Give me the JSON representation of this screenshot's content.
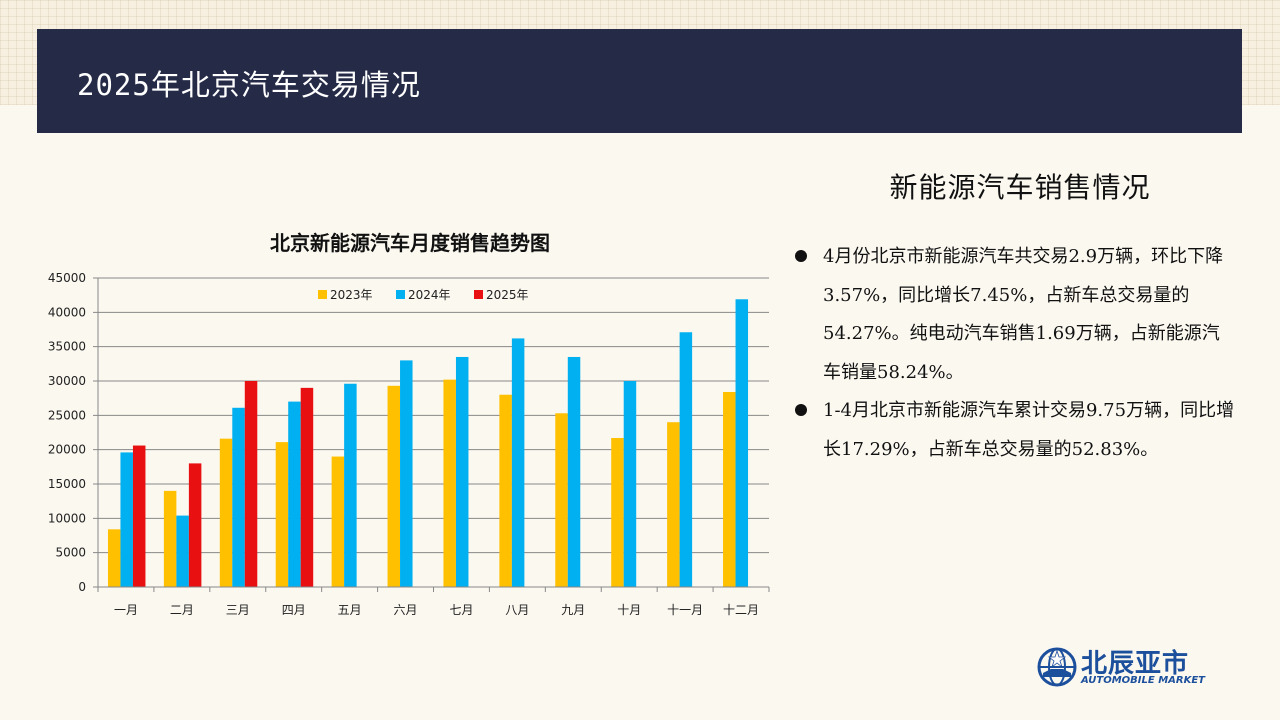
{
  "header": {
    "title": "2025年北京汽车交易情况"
  },
  "right_panel": {
    "title": "新能源汽车销售情况",
    "bullets": [
      "4月份北京市新能源汽车共交易2.9万辆，环比下降3.57%，同比增长7.45%，占新车总交易量的54.27%。纯电动汽车销售1.69万辆，占新能源汽车销量58.24%。",
      "1-4月北京市新能源汽车累计交易9.75万辆，同比增长17.29%，占新车总交易量的52.83%。"
    ]
  },
  "logo": {
    "name": "北辰亚市",
    "sub": "AUTOMOBILE MARKET",
    "icon": "globe-car-icon"
  },
  "chart_data": {
    "type": "bar",
    "title": "北京新能源汽车月度销售趋势图",
    "categories": [
      "一月",
      "二月",
      "三月",
      "四月",
      "五月",
      "六月",
      "七月",
      "八月",
      "九月",
      "十月",
      "十一月",
      "十二月"
    ],
    "yticks": [
      0,
      5000,
      10000,
      15000,
      20000,
      25000,
      30000,
      35000,
      40000,
      45000
    ],
    "ylim": [
      0,
      45000
    ],
    "grid": true,
    "legend_position": "top",
    "series": [
      {
        "name": "2023年",
        "color": "#ffc000",
        "values": [
          8400,
          14000,
          21600,
          21100,
          19000,
          29300,
          30200,
          28000,
          25300,
          21700,
          24000,
          28400
        ]
      },
      {
        "name": "2024年",
        "color": "#00b0f0",
        "values": [
          19600,
          10400,
          26100,
          27000,
          29600,
          33000,
          33500,
          36200,
          33500,
          30000,
          37100,
          41900
        ]
      },
      {
        "name": "2025年",
        "color": "#e81010",
        "values": [
          20600,
          18000,
          30000,
          29000,
          null,
          null,
          null,
          null,
          null,
          null,
          null,
          null
        ]
      }
    ]
  }
}
